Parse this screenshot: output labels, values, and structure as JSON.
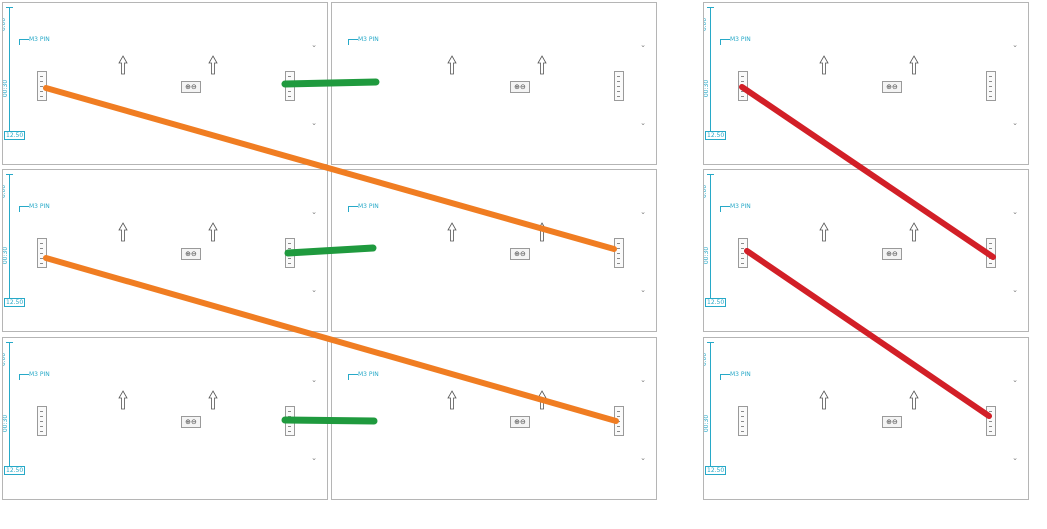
{
  "panel_texts": {
    "top_tick": "6.00",
    "mid_tick": "00:30",
    "bottom_tick": "12.50",
    "pin_label": "M3 PIN",
    "zoom_label": "⊕⊖",
    "corner_glyph": "⌄"
  },
  "colors": {
    "orange": "#f07d22",
    "green": "#1f9a3e",
    "red": "#d21f27",
    "axis": "#27a9c8",
    "border": "#b5b5b5"
  },
  "connections": [
    {
      "color": "orange",
      "from": "row1-left",
      "to": "row2-right"
    },
    {
      "color": "orange",
      "from": "row2-left",
      "to": "row3-right"
    },
    {
      "color": "green",
      "from": "row1-left",
      "to": "row1-right"
    },
    {
      "color": "green",
      "from": "row2-left",
      "to": "row2-right"
    },
    {
      "color": "green",
      "from": "row3-left",
      "to": "row3-right"
    },
    {
      "color": "red",
      "from": "row1-single",
      "to": "row2-single"
    },
    {
      "color": "red",
      "from": "row2-single",
      "to": "row3-single"
    }
  ]
}
